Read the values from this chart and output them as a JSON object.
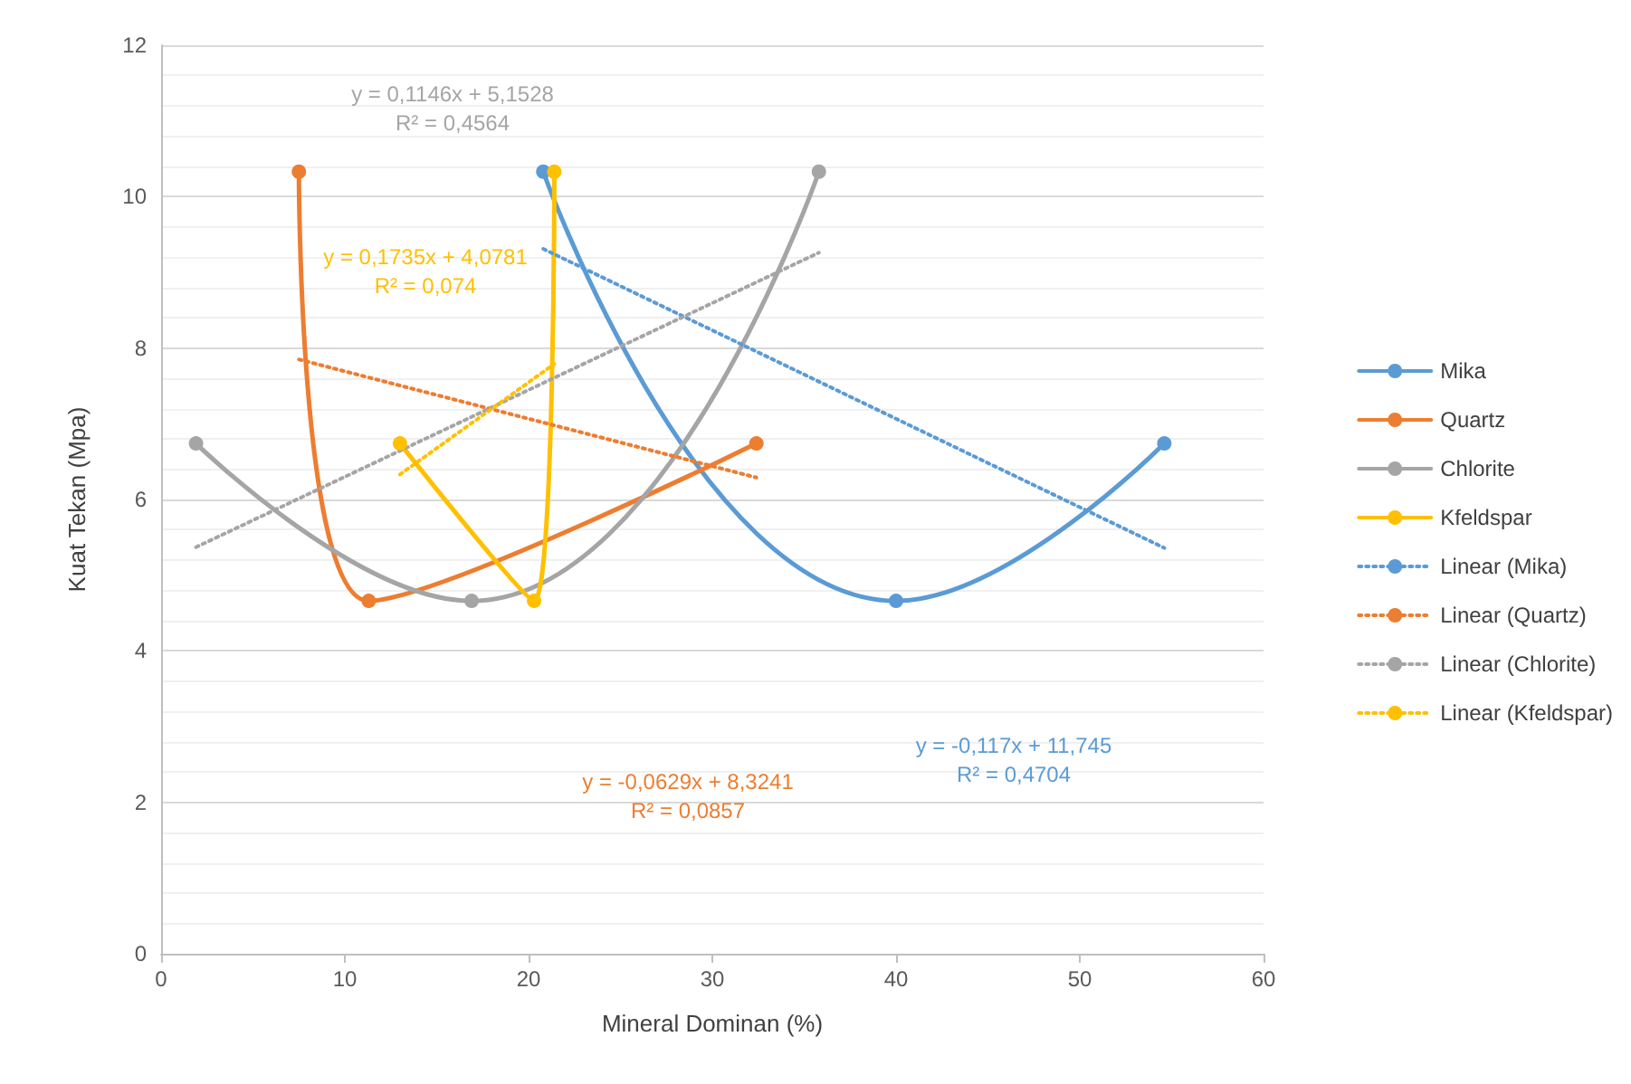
{
  "chart_data": {
    "type": "line",
    "xlabel": "Mineral Dominan (%)",
    "ylabel": "Kuat Tekan (Mpa)",
    "xlim": [
      0,
      60
    ],
    "xticks": [
      0,
      10,
      20,
      30,
      40,
      50,
      60
    ],
    "ylim": [
      0,
      12
    ],
    "yticks": [
      0,
      2,
      4,
      6,
      8,
      10,
      12
    ],
    "grid": "y",
    "legend": "right",
    "marker": "circle",
    "line_style": "solid",
    "series": [
      {
        "name": "Mika",
        "color": "#5b9bd5",
        "x": [
          20.8,
          40.0,
          54.6
        ],
        "values": [
          10.33,
          4.66,
          6.74
        ]
      },
      {
        "name": "Quartz",
        "color": "#ed7d31",
        "x": [
          7.5,
          11.3,
          32.4
        ],
        "values": [
          10.33,
          4.66,
          6.74
        ]
      },
      {
        "name": "Chlorite",
        "color": "#a5a5a5",
        "x": [
          1.9,
          16.9,
          35.8
        ],
        "values": [
          6.74,
          4.66,
          10.33
        ]
      },
      {
        "name": "Kfeldspar",
        "color": "#ffc000",
        "x": [
          13.0,
          20.3,
          21.4
        ],
        "values": [
          6.74,
          4.66,
          10.33
        ]
      },
      {
        "name": "Linear (Mika)",
        "color": "#5b9bd5",
        "marker": "none",
        "line_style": "dotted",
        "x": [
          20.8,
          54.6
        ],
        "values": [
          9.31,
          5.36
        ]
      },
      {
        "name": "Linear (Quartz)",
        "color": "#ed7d31",
        "marker": "none",
        "line_style": "dotted",
        "x": [
          7.5,
          32.4
        ],
        "values": [
          7.85,
          6.29
        ]
      },
      {
        "name": "Linear (Chlorite)",
        "color": "#a5a5a5",
        "marker": "none",
        "line_style": "dotted",
        "x": [
          1.9,
          35.8
        ],
        "values": [
          5.37,
          9.26
        ]
      },
      {
        "name": "Linear (Kfeldspar)",
        "color": "#ffc000",
        "marker": "none",
        "line_style": "dotted",
        "x": [
          13.0,
          21.4
        ],
        "values": [
          6.33,
          7.79
        ]
      }
    ],
    "annotations": [
      "y = -0,117x + 11,745\nR² = 0,4704",
      "y = -0,0629x + 8,3241\nR² = 0,0857",
      "y = 0,1146x + 5,1528\nR² = 0,4564",
      "y = 0,1735x + 4,0781\nR² = 0,074"
    ]
  }
}
